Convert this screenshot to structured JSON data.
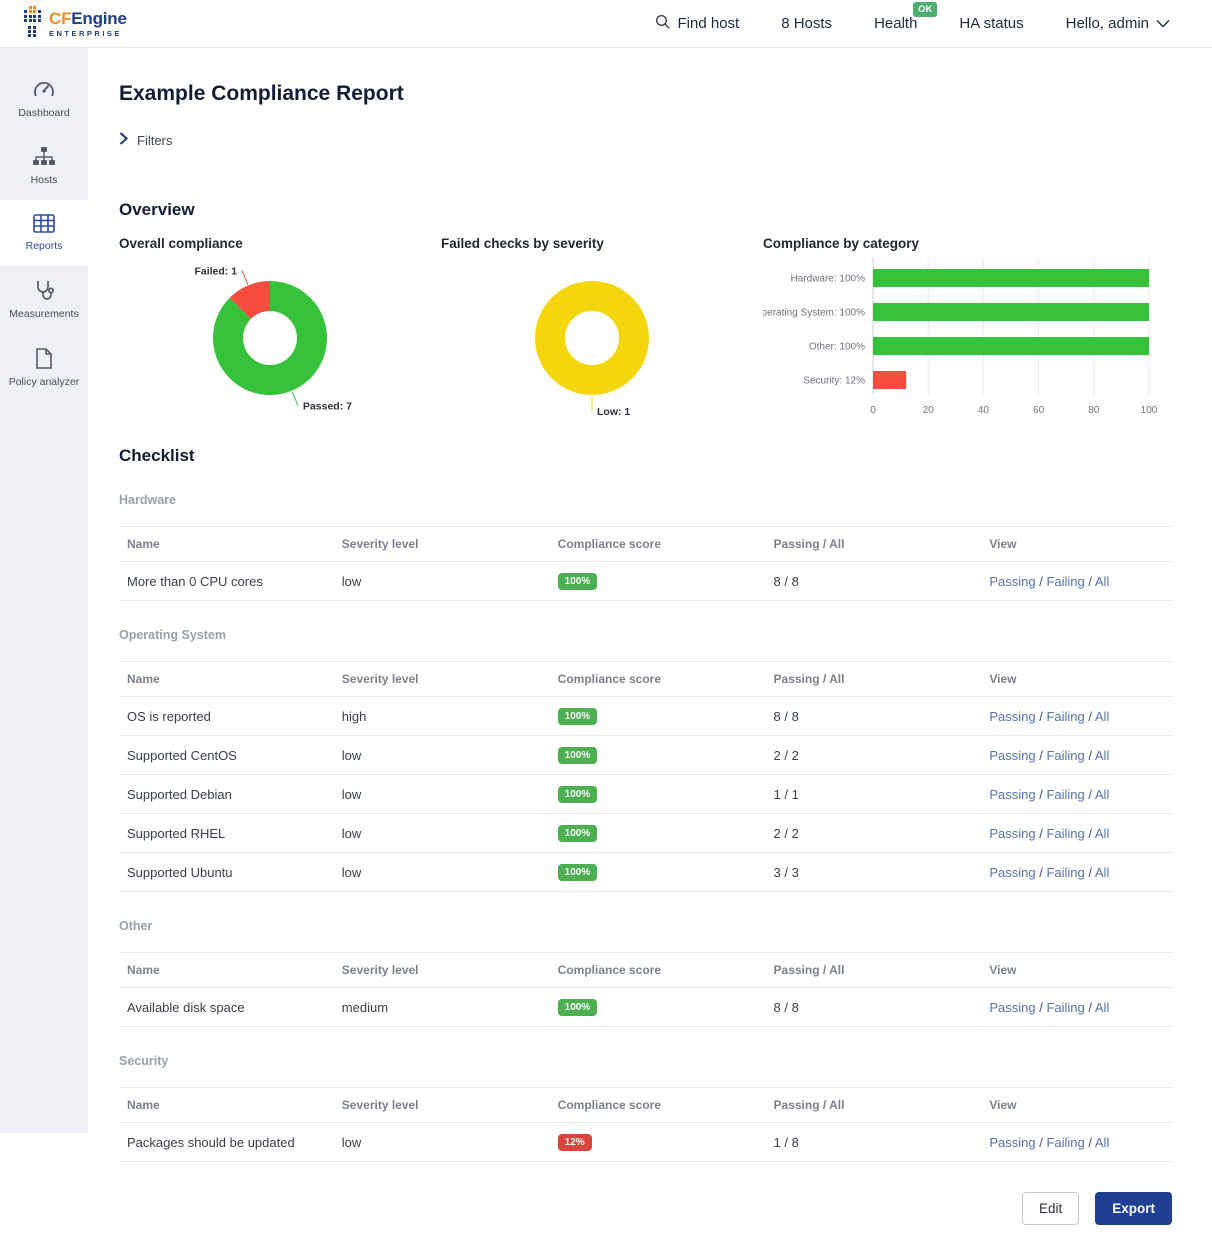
{
  "header": {
    "logo_cf": "CF",
    "logo_engine": "Engine",
    "logo_subtitle": "ENTERPRISE",
    "find_host_label": "Find host",
    "hosts_count_label": "8 Hosts",
    "health_label": "Health",
    "health_status": "OK",
    "ha_status_label": "HA status",
    "user_greeting": "Hello, admin"
  },
  "sidebar": {
    "items": [
      {
        "label": "Dashboard"
      },
      {
        "label": "Hosts"
      },
      {
        "label": "Reports"
      },
      {
        "label": "Measurements"
      },
      {
        "label": "Policy analyzer"
      }
    ],
    "active_item": "Reports"
  },
  "page": {
    "title": "Example Compliance Report",
    "filters_label": "Filters",
    "overview_heading": "Overview",
    "checklist_heading": "Checklist"
  },
  "chart_data": [
    {
      "type": "pie",
      "donut": true,
      "title": "Overall compliance",
      "slices": [
        {
          "label": "Passed",
          "value": 7,
          "color": "#35c13a"
        },
        {
          "label": "Failed",
          "value": 1,
          "color": "#f74c40"
        }
      ]
    },
    {
      "type": "pie",
      "donut": true,
      "title": "Failed checks by severity",
      "slices": [
        {
          "label": "Low",
          "value": 1,
          "color": "#f3d60b"
        }
      ]
    },
    {
      "type": "bar",
      "title": "Compliance by category",
      "orientation": "horizontal",
      "categories": [
        "Hardware",
        "Operating System",
        "Other",
        "Security"
      ],
      "values": [
        100,
        100,
        100,
        12
      ],
      "colors": [
        "#35c13a",
        "#35c13a",
        "#35c13a",
        "#f74c40"
      ],
      "xlim": [
        0,
        100
      ],
      "ticks": [
        0,
        20,
        40,
        60,
        80,
        100
      ],
      "grid": true
    }
  ],
  "checklist": {
    "columns": [
      "Name",
      "Severity level",
      "Compliance score",
      "Passing / All",
      "View"
    ],
    "view_links": [
      "Passing",
      "Failing",
      "All"
    ],
    "sections": [
      {
        "name": "Hardware",
        "rows": [
          {
            "name": "More than 0 CPU cores",
            "severity": "low",
            "score": "100%",
            "score_color": "#4caf50",
            "passing": "8 / 8"
          }
        ]
      },
      {
        "name": "Operating System",
        "rows": [
          {
            "name": "OS is reported",
            "severity": "high",
            "score": "100%",
            "score_color": "#4caf50",
            "passing": "8 / 8"
          },
          {
            "name": "Supported CentOS",
            "severity": "low",
            "score": "100%",
            "score_color": "#4caf50",
            "passing": "2 / 2"
          },
          {
            "name": "Supported Debian",
            "severity": "low",
            "score": "100%",
            "score_color": "#4caf50",
            "passing": "1 / 1"
          },
          {
            "name": "Supported RHEL",
            "severity": "low",
            "score": "100%",
            "score_color": "#4caf50",
            "passing": "2 / 2"
          },
          {
            "name": "Supported Ubuntu",
            "severity": "low",
            "score": "100%",
            "score_color": "#4caf50",
            "passing": "3 / 3"
          }
        ]
      },
      {
        "name": "Other",
        "rows": [
          {
            "name": "Available disk space",
            "severity": "medium",
            "score": "100%",
            "score_color": "#4caf50",
            "passing": "8 / 8"
          }
        ]
      },
      {
        "name": "Security",
        "rows": [
          {
            "name": "Packages should be updated",
            "severity": "low",
            "score": "12%",
            "score_color": "#d9453c",
            "passing": "1 / 8"
          }
        ]
      }
    ]
  },
  "footer": {
    "edit_label": "Edit",
    "export_label": "Export"
  },
  "colors": {
    "accent_blue": "#1e3f92",
    "link_blue": "#5671b8",
    "health_ok_green": "#4caf6d",
    "sidebar_bg": "#eef0f6",
    "logo_orange": "#f28c1e",
    "logo_blue": "#1e3c8c"
  }
}
